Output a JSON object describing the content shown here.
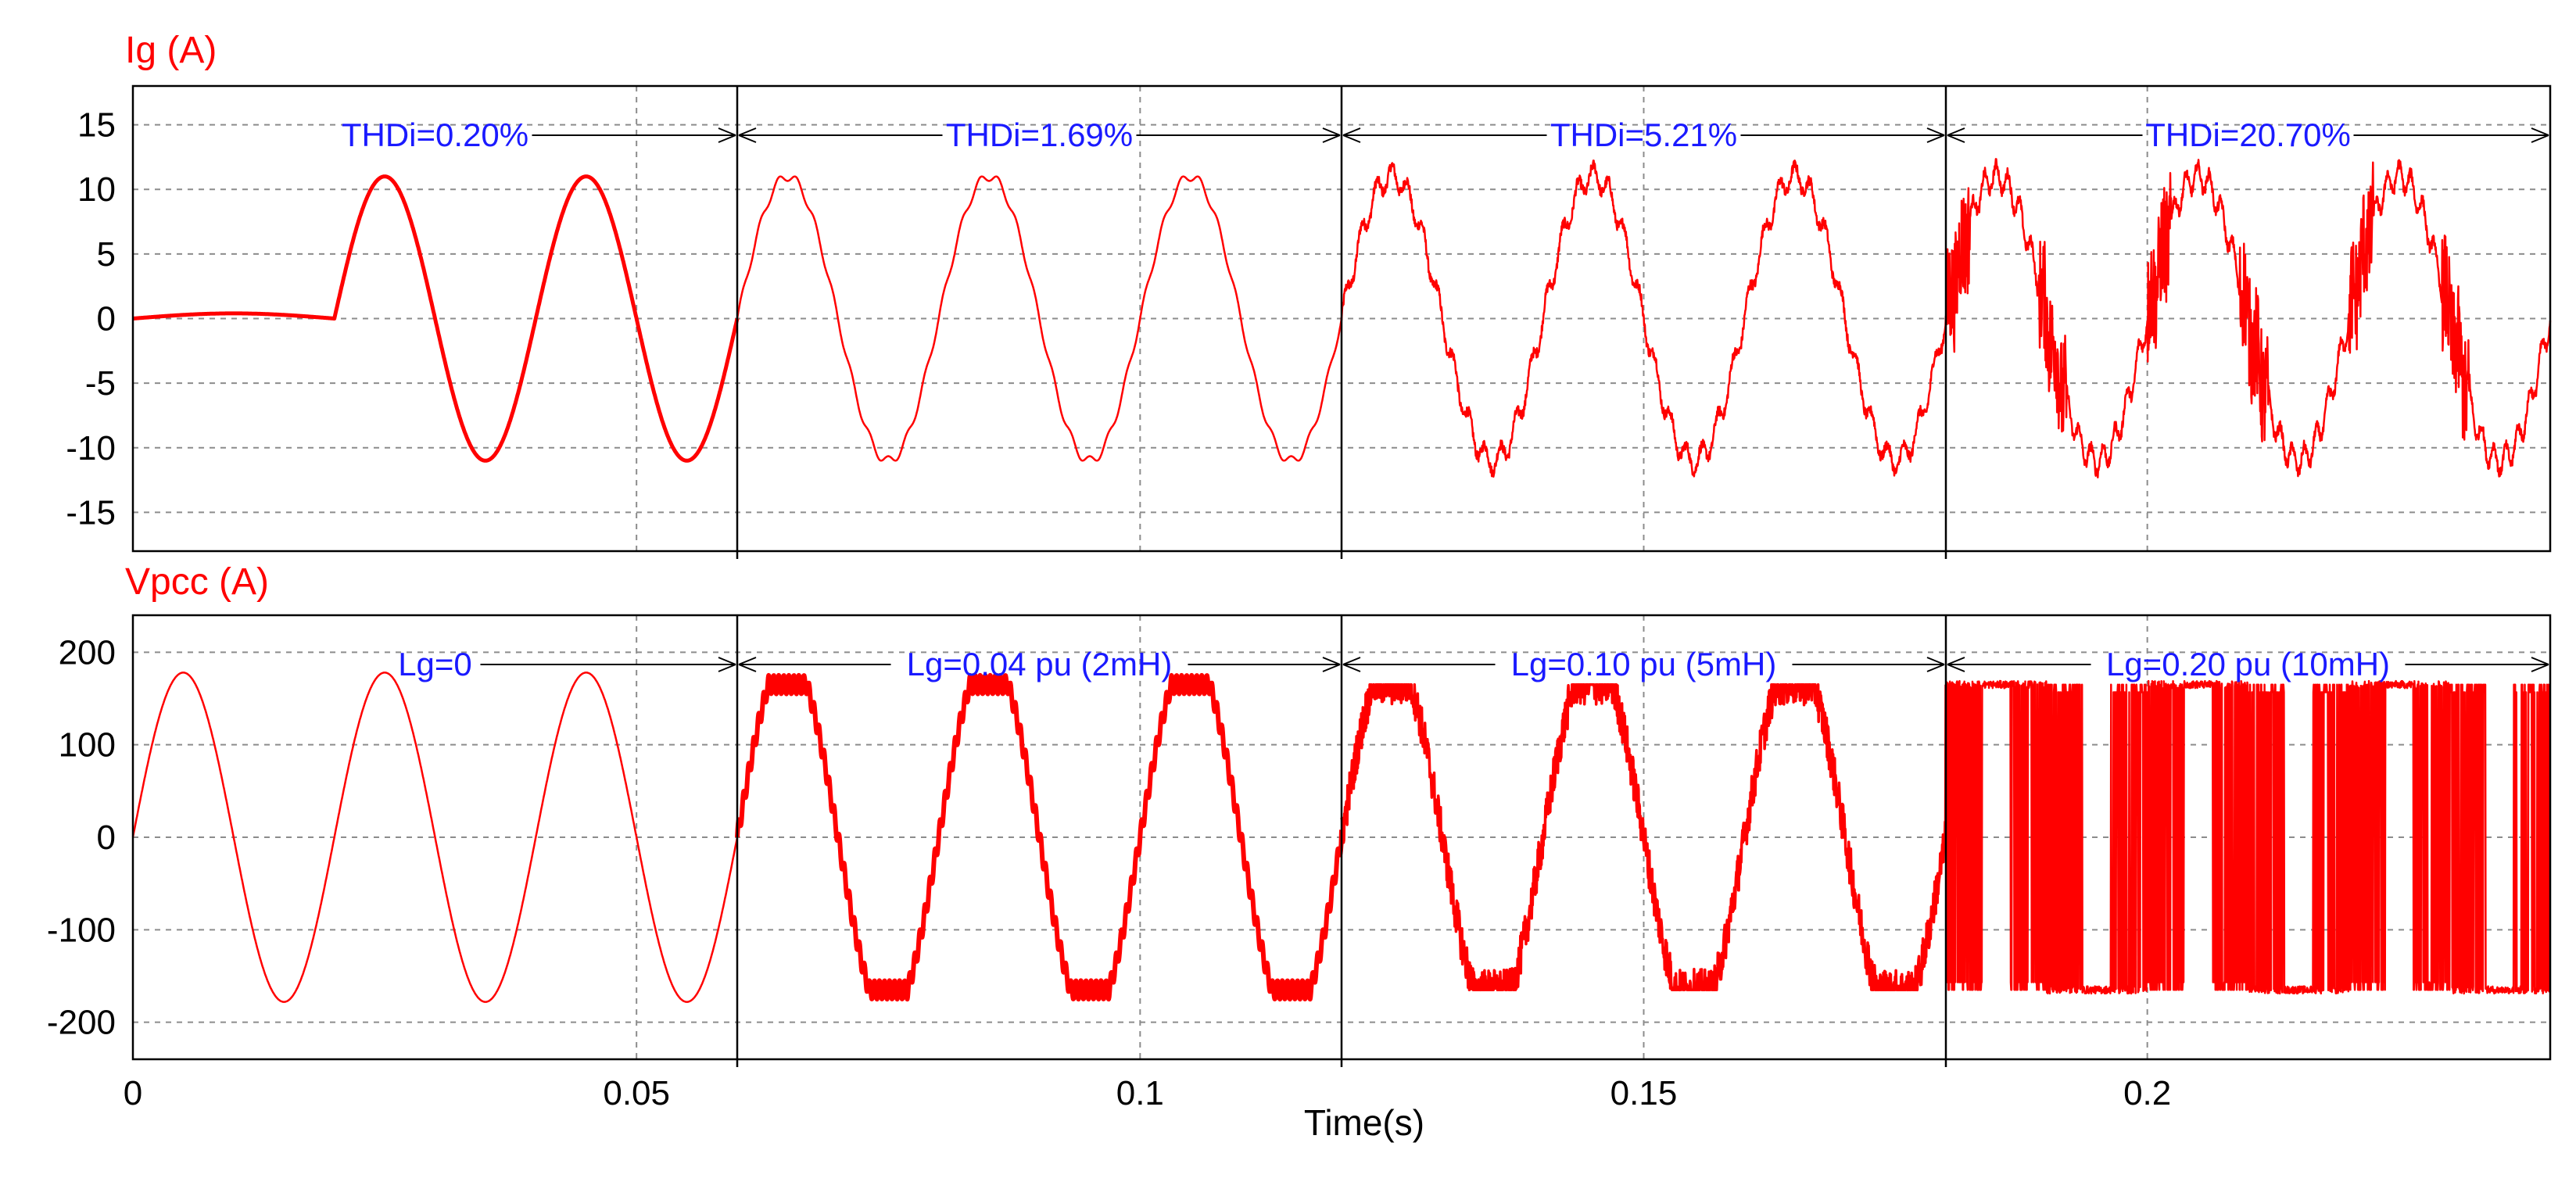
{
  "colors": {
    "trace": "#ff0000",
    "annotation": "#1a1aff",
    "axis": "#000000",
    "grid": "#8c8c8c",
    "background": "#ffffff"
  },
  "chart_data": [
    {
      "type": "line",
      "panel": "top",
      "ylabel": "Ig (A)",
      "ylim": [
        -18,
        18
      ],
      "yticks": [
        15,
        10,
        5,
        0,
        -5,
        -10,
        -15
      ],
      "ytick_labels": [
        "15",
        "10",
        "5",
        "0",
        "-5",
        "-10",
        "-15"
      ],
      "xlim": [
        0,
        0.24
      ],
      "grid": "dashed",
      "series": [
        {
          "name": "Ig",
          "description": "0.5 A ripple until 0.02 s, then 50 Hz sine of amplitude 11 A with harmonic distortion increasing after each step",
          "amplitude": 11,
          "frequency_hz": 50,
          "start_time": 0.02
        }
      ],
      "segment_boundaries": [
        0.06,
        0.12,
        0.18
      ],
      "annotations": [
        {
          "text": "THDi=0.20%",
          "t_start": 0.0,
          "t_end": 0.06
        },
        {
          "text": "THDi=1.69%",
          "t_start": 0.06,
          "t_end": 0.12
        },
        {
          "text": "THDi=5.21%",
          "t_start": 0.12,
          "t_end": 0.18
        },
        {
          "text": "THDi=20.70%",
          "t_start": 0.18,
          "t_end": 0.24
        }
      ]
    },
    {
      "type": "line",
      "panel": "bottom",
      "ylabel": "Vpcc (A)",
      "ylim": [
        -240,
        240
      ],
      "yticks": [
        200,
        100,
        0,
        -100,
        -200
      ],
      "ytick_labels": [
        "200",
        "100",
        "0",
        "-100",
        "-200"
      ],
      "xlim": [
        0,
        0.24
      ],
      "xticks": [
        0,
        0.05,
        0.1,
        0.15,
        0.2
      ],
      "xtick_labels": [
        "0",
        "0.05",
        "0.1",
        "0.15",
        "0.2"
      ],
      "xlabel": "Time(s)",
      "grid": "dashed",
      "series": [
        {
          "name": "Vpcc",
          "description": "50 Hz voltage, amplitude 178, increasingly clipped near ±165 and distorted as Lg grows",
          "amplitude": 178,
          "frequency_hz": 50,
          "clip_level": 165
        }
      ],
      "segment_boundaries": [
        0.06,
        0.12,
        0.18
      ],
      "annotations": [
        {
          "text": "Lg=0",
          "t_start": 0.0,
          "t_end": 0.06
        },
        {
          "text": "Lg=0.04 pu (2mH)",
          "t_start": 0.06,
          "t_end": 0.12
        },
        {
          "text": "Lg=0.10 pu (5mH)",
          "t_start": 0.12,
          "t_end": 0.18
        },
        {
          "text": "Lg=0.20 pu (10mH)",
          "t_start": 0.18,
          "t_end": 0.24
        }
      ]
    }
  ]
}
